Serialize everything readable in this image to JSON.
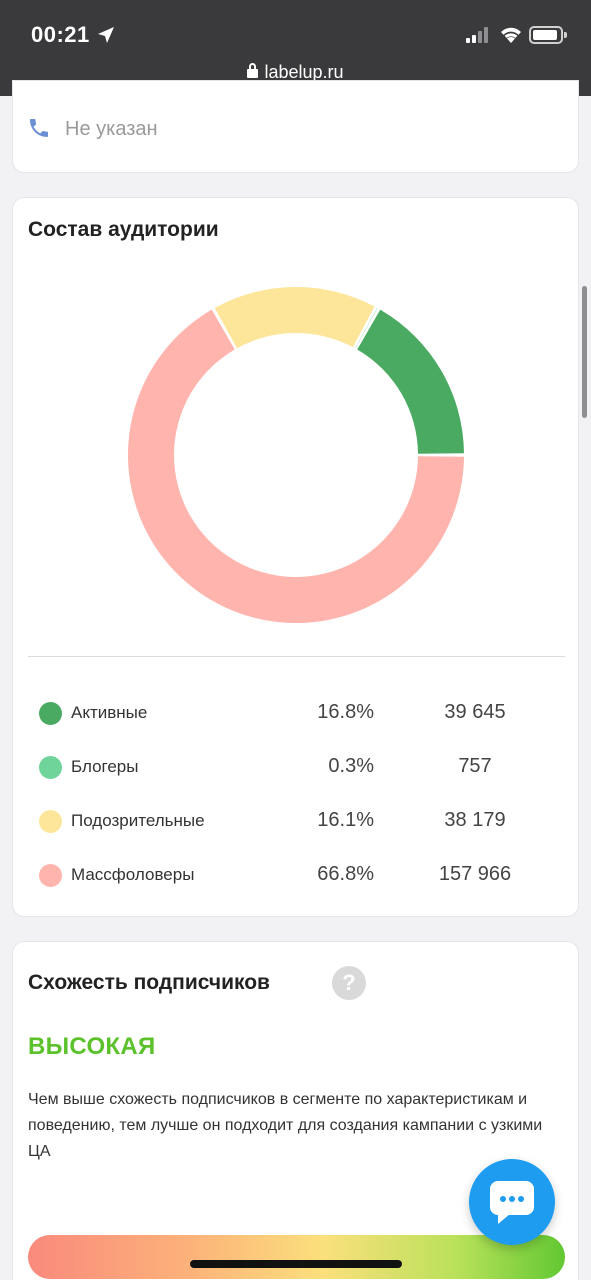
{
  "status_bar": {
    "time": "00:21",
    "url": "labelup.ru"
  },
  "contact": {
    "phone_text": "Не указан"
  },
  "audience": {
    "title": "Состав аудитории",
    "legend": [
      {
        "label": "Активные",
        "percent": "16.8%",
        "count": "39 645",
        "color": "#4aaa62"
      },
      {
        "label": "Блогеры",
        "percent": "0.3%",
        "count": "757",
        "color": "#6fd49a"
      },
      {
        "label": "Подозрительные",
        "percent": "16.1%",
        "count": "38 179",
        "color": "#fde59a"
      },
      {
        "label": "Массфоловеры",
        "percent": "66.8%",
        "count": "157 966",
        "color": "#ffb4ad"
      }
    ]
  },
  "chart_data": {
    "type": "pie",
    "title": "Состав аудитории",
    "categories": [
      "Активные",
      "Блогеры",
      "Подозрительные",
      "Массфоловеры"
    ],
    "values": [
      16.8,
      0.3,
      16.1,
      66.8
    ],
    "counts": [
      39645,
      757,
      38179,
      157966
    ],
    "colors": [
      "#4aaa62",
      "#6fd49a",
      "#fde59a",
      "#ffb4ad"
    ],
    "donut": true
  },
  "similarity": {
    "title": "Схожесть подписчиков",
    "help": "?",
    "level": "ВЫСОКАЯ",
    "description": "Чем выше схожесть подписчиков в сегменте по характеристикам и поведению, тем лучше он подходит для создания кампании с узкими ЦА"
  }
}
